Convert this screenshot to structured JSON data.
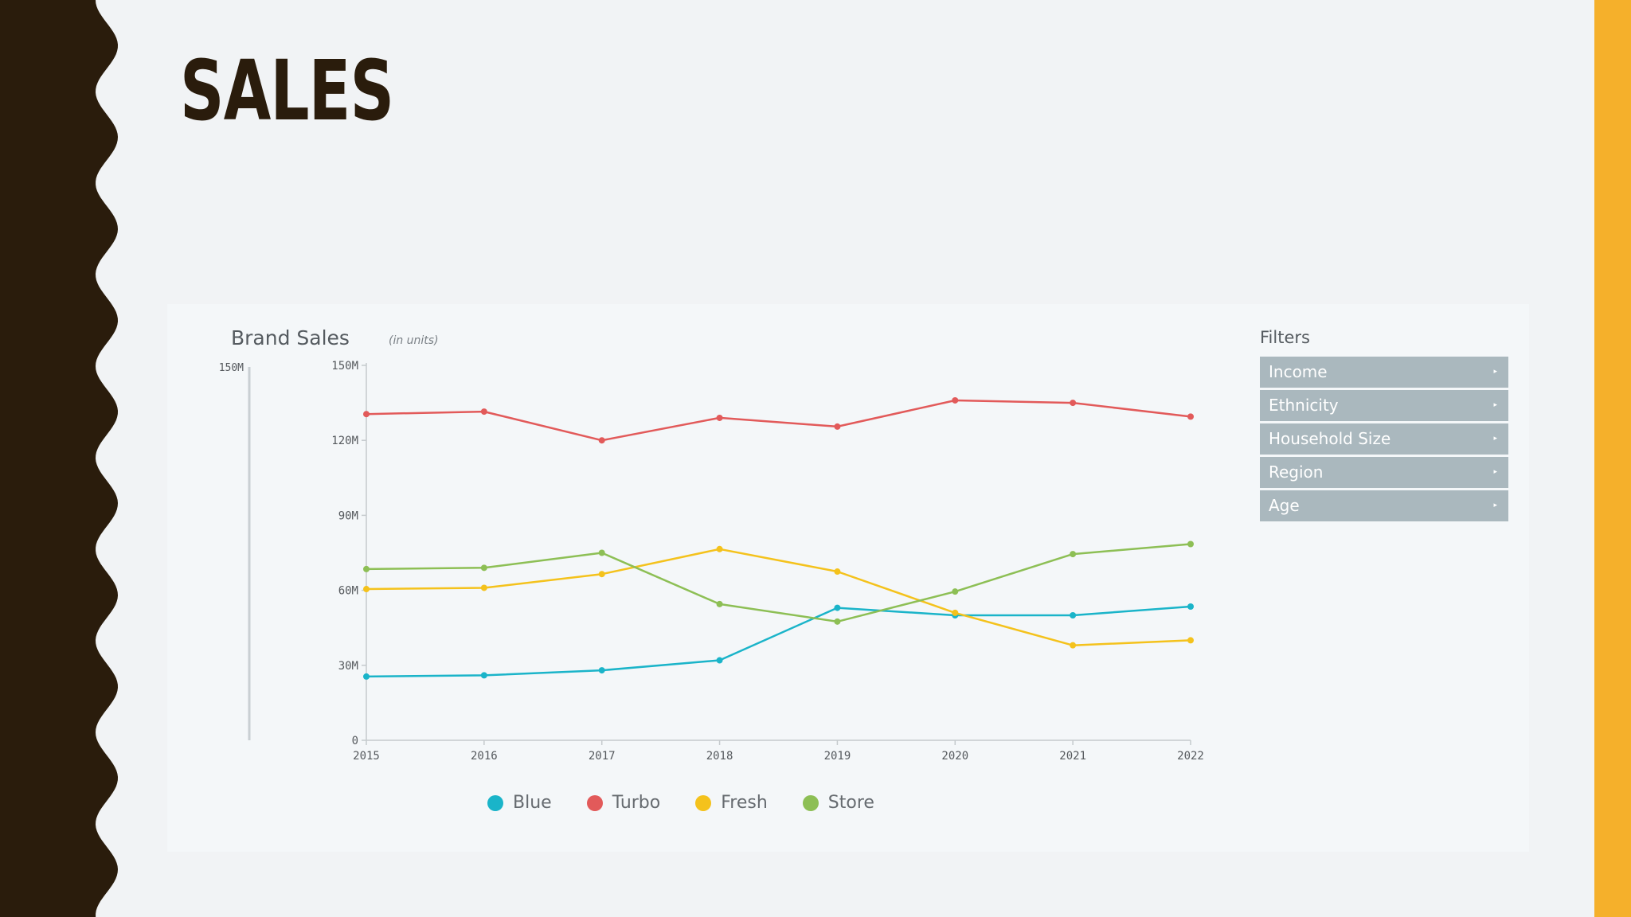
{
  "slide": {
    "title": "SALES",
    "colors": {
      "left_band": "#2a1c0c",
      "right_band": "#f5b02b",
      "background": "#f1f3f5"
    }
  },
  "chart_data": {
    "type": "line",
    "title": "Brand Sales",
    "subtitle": "(in units)",
    "x": [
      "2015",
      "2016",
      "2017",
      "2018",
      "2019",
      "2020",
      "2021",
      "2022"
    ],
    "ylim": [
      0,
      150
    ],
    "yticks": [
      "0",
      "30M",
      "60M",
      "90M",
      "120M",
      "150M"
    ],
    "range_slider": {
      "min_label": "150M"
    },
    "series": [
      {
        "name": "Blue",
        "color": "#1ab4c9",
        "values": [
          25.5,
          26,
          28,
          32,
          53,
          50,
          50,
          53.5
        ]
      },
      {
        "name": "Turbo",
        "color": "#e25a5a",
        "values": [
          130.5,
          131.5,
          120,
          129,
          125.5,
          136,
          135,
          129.5
        ]
      },
      {
        "name": "Fresh",
        "color": "#f4c21c",
        "values": [
          60.5,
          61,
          66.5,
          76.5,
          67.5,
          51,
          38,
          40
        ]
      },
      {
        "name": "Store",
        "color": "#8dbf55",
        "values": [
          68.5,
          69,
          75,
          54.5,
          47.5,
          59.5,
          74.5,
          78.5
        ]
      }
    ],
    "grid": false,
    "legend": "bottom-center"
  },
  "filters": {
    "title": "Filters",
    "items": [
      "Income",
      "Ethnicity",
      "Household Size",
      "Region",
      "Age"
    ],
    "caret": "▸"
  }
}
